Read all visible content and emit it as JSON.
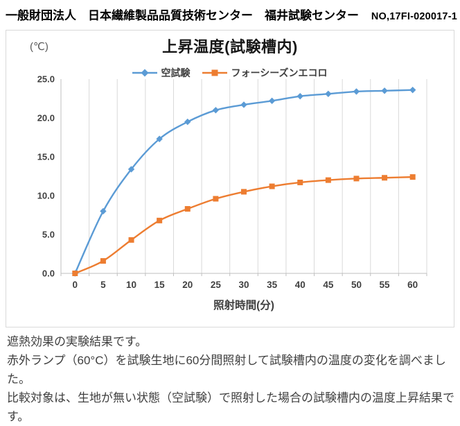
{
  "header": {
    "org": "一般財団法人　日本繊維製品品質技術センター　福井試験センター",
    "report_no": "NO,17FI-020017-1"
  },
  "chart": {
    "title": "上昇温度(試験槽内)",
    "unit_label": "(℃)",
    "xlabel": "照射時間(分)"
  },
  "chart_data": {
    "type": "line",
    "title": "上昇温度(試験槽内)",
    "xlabel": "照射時間(分)",
    "ylabel": "(℃)",
    "categories": [
      0,
      5,
      10,
      15,
      20,
      25,
      30,
      35,
      40,
      45,
      50,
      55,
      60
    ],
    "series": [
      {
        "name": "空試験",
        "marker": "diamond",
        "color": "#5B9BD5",
        "values": [
          0.0,
          8.0,
          13.4,
          17.3,
          19.5,
          21.0,
          21.7,
          22.2,
          22.8,
          23.1,
          23.4,
          23.5,
          23.6
        ]
      },
      {
        "name": "フォーシーズンエコロ",
        "marker": "square",
        "color": "#ED7D31",
        "values": [
          0.0,
          1.6,
          4.3,
          6.8,
          8.3,
          9.6,
          10.5,
          11.2,
          11.7,
          12.0,
          12.2,
          12.3,
          12.4
        ]
      }
    ],
    "ylim": [
      0,
      25
    ],
    "ytick_step": 5,
    "ytick_labels": [
      "0.0",
      "5.0",
      "10.0",
      "15.0",
      "20.0",
      "25.0"
    ],
    "grid": "vertical_only",
    "legend_position": "top_center",
    "line_style": "smoothed"
  },
  "colors": {
    "gridline": "#d9d9d9",
    "axis_line": "#bfbfbf",
    "tick_label": "#404040"
  },
  "footer": {
    "lines": [
      "遮熱効果の実験結果です。",
      "赤外ランプ（60°C）を試験生地に60分間照射して試験槽内の温度の変化を調べました。",
      "比較対象は、生地が無い状態（空試験）で照射した場合の試験槽内の温度上昇結果です。"
    ]
  }
}
